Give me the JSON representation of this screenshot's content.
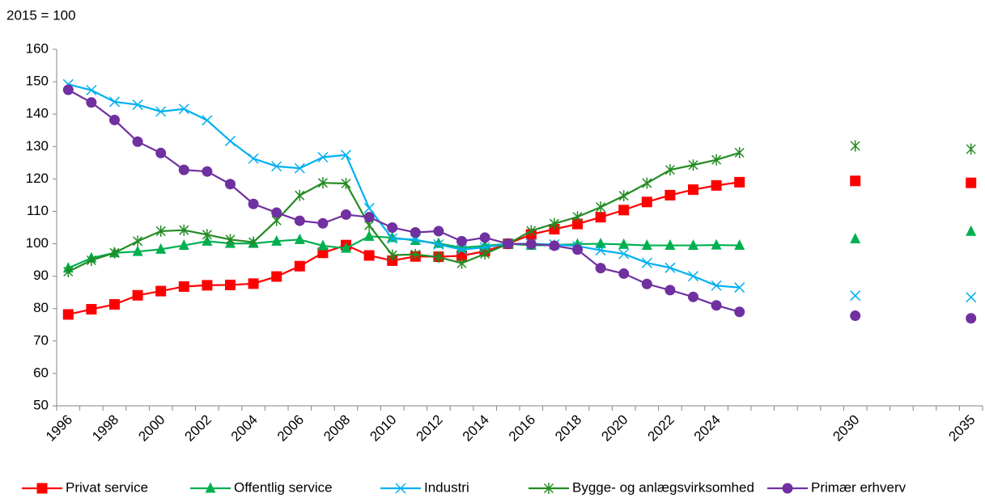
{
  "chart_data": {
    "type": "line",
    "title": "2015 = 100",
    "categories": [
      "1996",
      null,
      "1998",
      null,
      "2000",
      null,
      "2002",
      null,
      "2004",
      null,
      "2006",
      null,
      "2008",
      null,
      "2010",
      null,
      "2012",
      null,
      "2014",
      null,
      "2016",
      null,
      "2018",
      null,
      "2020",
      null,
      "2022",
      null,
      "2024",
      null,
      null,
      null,
      null,
      null,
      "2030",
      null,
      null,
      null,
      null,
      "2035"
    ],
    "ylim": [
      50,
      160
    ],
    "yticks": [
      50,
      60,
      70,
      80,
      90,
      100,
      110,
      120,
      130,
      140,
      150,
      160
    ],
    "series": [
      {
        "name": "Privat service",
        "color": "#ff0000",
        "marker": "square",
        "values": [
          78.2,
          79.8,
          81.3,
          84.1,
          85.4,
          86.8,
          87.2,
          87.3,
          87.7,
          89.9,
          93.1,
          97.2,
          99.6,
          96.4,
          94.8,
          96.1,
          96.0,
          96.3,
          97.7,
          100,
          102.9,
          104.5,
          106.1,
          108.2,
          110.4,
          112.9,
          115.0,
          116.7,
          118.0,
          119.0,
          null,
          null,
          null,
          null,
          119.4,
          null,
          null,
          null,
          null,
          118.8
        ]
      },
      {
        "name": "Offentlig service",
        "color": "#00b050",
        "marker": "triangle",
        "values": [
          92.5,
          95.6,
          97.2,
          97.6,
          98.3,
          99.5,
          100.8,
          100.1,
          100.1,
          100.8,
          101.3,
          99.4,
          98.6,
          102.3,
          101.9,
          101.0,
          100.1,
          98.8,
          99.4,
          100,
          99.5,
          99.6,
          99.9,
          100.0,
          99.8,
          99.5,
          99.5,
          99.5,
          99.6,
          99.5,
          null,
          null,
          null,
          null,
          101.5,
          null,
          null,
          null,
          null,
          103.8
        ]
      },
      {
        "name": "Industri",
        "color": "#00b0f0",
        "marker": "x",
        "values": [
          149.2,
          147.4,
          143.8,
          142.9,
          140.8,
          141.6,
          138.1,
          131.7,
          126.3,
          123.9,
          123.3,
          126.7,
          127.4,
          111.0,
          101.6,
          101.3,
          99.8,
          98.2,
          98.9,
          100,
          100.0,
          99.8,
          99.3,
          98.0,
          96.9,
          94.1,
          92.6,
          90.0,
          87.1,
          86.5,
          null,
          null,
          null,
          null,
          84.0,
          null,
          null,
          null,
          null,
          83.5
        ]
      },
      {
        "name": "Bygge- og anlægsvirksomhed",
        "color": "#238b23",
        "marker": "star",
        "values": [
          91.4,
          94.9,
          97.2,
          100.8,
          103.9,
          104.2,
          102.8,
          101.3,
          100.5,
          107.2,
          114.9,
          118.8,
          118.6,
          105.7,
          96.5,
          96.7,
          95.9,
          94.0,
          96.9,
          100,
          104.0,
          106.2,
          108.3,
          111.3,
          114.8,
          118.7,
          122.8,
          124.3,
          125.9,
          128.1,
          null,
          null,
          null,
          null,
          130.2,
          null,
          null,
          null,
          null,
          129.2
        ]
      },
      {
        "name": "Primær erhverv",
        "color": "#7030a0",
        "marker": "circle",
        "values": [
          147.5,
          143.6,
          138.2,
          131.5,
          128.0,
          122.8,
          122.3,
          118.4,
          112.3,
          109.6,
          107.1,
          106.3,
          109.0,
          108.2,
          105.0,
          103.5,
          103.9,
          100.8,
          101.9,
          100,
          99.9,
          99.4,
          98.2,
          92.5,
          90.8,
          87.6,
          85.7,
          83.6,
          81.0,
          79.0,
          null,
          null,
          null,
          null,
          77.8,
          null,
          null,
          null,
          null,
          77.0
        ]
      }
    ]
  }
}
